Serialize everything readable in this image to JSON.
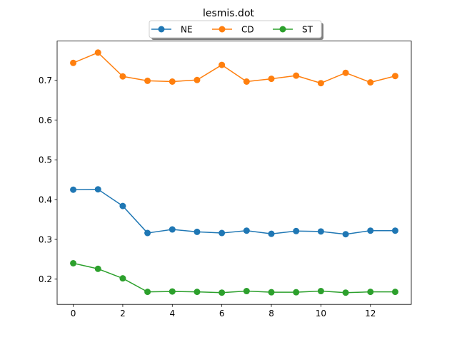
{
  "chart_data": {
    "type": "line",
    "title": "lesmis.dot",
    "xlabel": "",
    "ylabel": "",
    "x": [
      0,
      1,
      2,
      3,
      4,
      5,
      6,
      7,
      8,
      9,
      10,
      11,
      12,
      13
    ],
    "xticks": [
      0,
      2,
      4,
      6,
      8,
      10,
      12
    ],
    "xtick_labels": [
      "0",
      "2",
      "4",
      "6",
      "8",
      "10",
      "12"
    ],
    "yticks": [
      0.2,
      0.3,
      0.4,
      0.5,
      0.6,
      0.7
    ],
    "ytick_labels": [
      "0.2",
      "0.3",
      "0.4",
      "0.5",
      "0.6",
      "0.7"
    ],
    "xlim": [
      -0.65,
      13.65
    ],
    "ylim": [
      0.1365,
      0.799
    ],
    "grid": false,
    "legend_position": "top-center",
    "series": [
      {
        "name": "NE",
        "color": "#1f77b4",
        "values": [
          0.425,
          0.426,
          0.384,
          0.316,
          0.325,
          0.319,
          0.316,
          0.322,
          0.314,
          0.321,
          0.32,
          0.313,
          0.322,
          0.322
        ]
      },
      {
        "name": "CD",
        "color": "#ff7f0e",
        "values": [
          0.744,
          0.77,
          0.71,
          0.699,
          0.697,
          0.701,
          0.739,
          0.697,
          0.704,
          0.712,
          0.693,
          0.719,
          0.695,
          0.711
        ]
      },
      {
        "name": "ST",
        "color": "#2ca02c",
        "values": [
          0.24,
          0.226,
          0.202,
          0.168,
          0.169,
          0.168,
          0.166,
          0.17,
          0.167,
          0.167,
          0.17,
          0.166,
          0.168,
          0.168
        ]
      }
    ]
  }
}
